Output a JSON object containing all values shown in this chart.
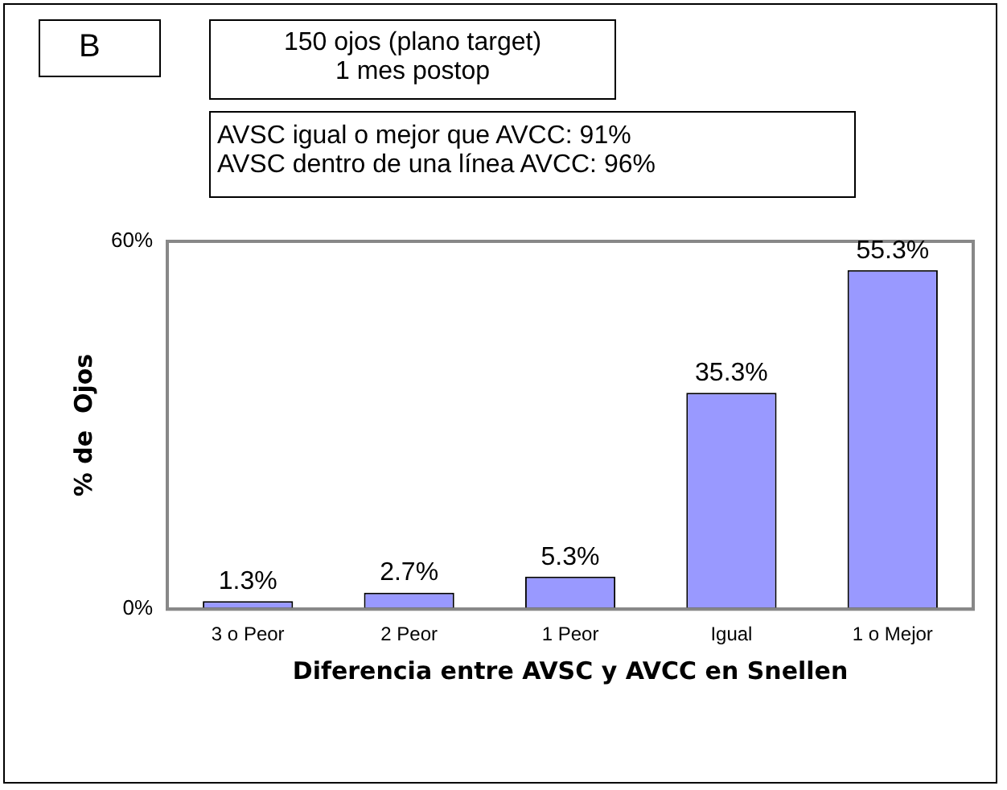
{
  "chart_data": {
    "type": "bar",
    "title": "150 ojos (plano target)",
    "subtitle": "1 mes postop",
    "annotations": [
      "B",
      "AVSC  igual o mejor que AVCC: 91%",
      "AVSC dentro de una línea AVCC: 96%"
    ],
    "xlabel": "Diferencia entre AVSC y AVCC en Snellen",
    "ylabel": "% de  Ojos",
    "categories": [
      "3 o Peor",
      "2 Peor",
      "1 Peor",
      "Igual",
      "1 o Mejor"
    ],
    "values": [
      1.3,
      2.7,
      5.3,
      35.3,
      55.3
    ],
    "color": "#9999ff",
    "value_labels": [
      "1.3%",
      "2.7%",
      "5.3%",
      "35.3%",
      "55.3%"
    ],
    "ylim": [
      0,
      60
    ],
    "yticks": [
      {
        "value": 0,
        "label": "0%"
      },
      {
        "value": 60,
        "label": "60%"
      }
    ],
    "grid": false,
    "legend": false
  }
}
